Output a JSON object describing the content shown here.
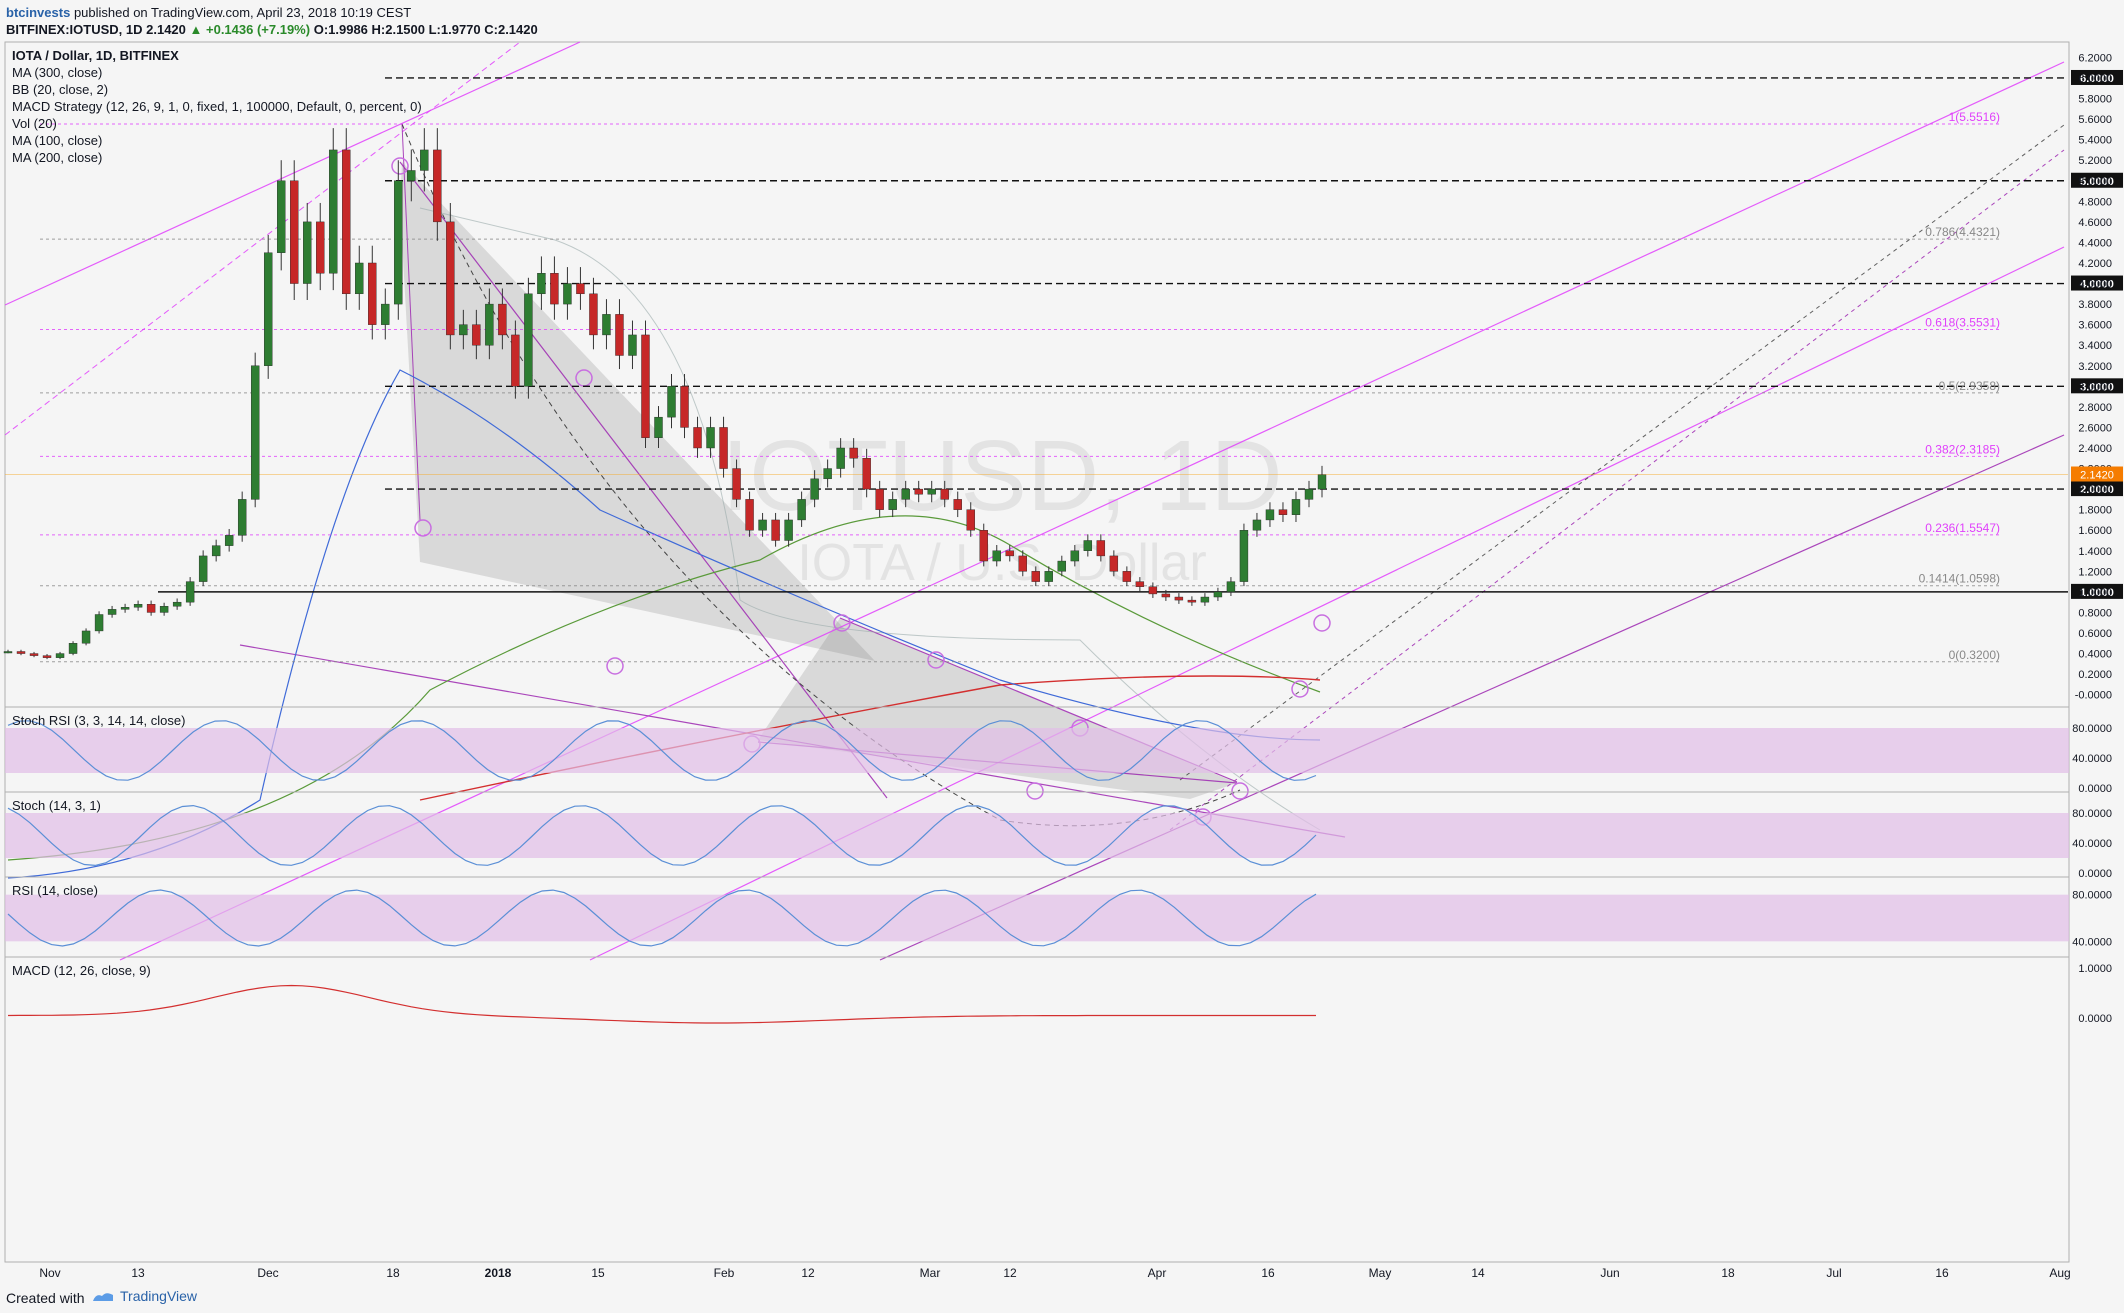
{
  "header": {
    "author": "btcinvests",
    "published": "published on TradingView.com, April 23, 2018 10:19 CEST",
    "symbol_line": "BITFINEX:IOTUSD, 1D 2.1420",
    "change": "▲ +0.1436 (+7.19%)",
    "ohlc": "O:1.9986 H:2.1500 L:1.9770 C:2.1420"
  },
  "legend": [
    "IOTA / Dollar, 1D, BITFINEX",
    "MA (300, close)",
    "BB (20, close, 2)",
    "MACD Strategy (12, 26, 9, 1, 0, fixed, 1, 100000, Default, 0, percent, 0)",
    "Vol (20)",
    "MA (100, close)",
    "MA (200, close)"
  ],
  "watermark": {
    "symbol": "IOTUSD, 1D",
    "name": "IOTA / U.S. Dollar"
  },
  "footer": {
    "created": "Created with",
    "brand": "TradingView"
  },
  "colors": {
    "bull": "#2e7d32",
    "bear": "#c62828",
    "pink": "#e040fb",
    "purple": "#9c27b0",
    "blue": "#3f6ad8",
    "price_tag": "#f57c00",
    "panel_fill": "#e1bee7"
  },
  "chart_data": [
    {
      "type": "candlestick",
      "panel": "price",
      "x_ticks": [
        "Nov",
        "13",
        "Dec",
        "18",
        "2018",
        "15",
        "Feb",
        "12",
        "Mar",
        "12",
        "Apr",
        "16",
        "May",
        "14",
        "Jun",
        "18",
        "Jul",
        "16",
        "Aug"
      ],
      "y_ticks": [
        "6.2000",
        "6.0000",
        "5.8000",
        "5.6000",
        "5.4000",
        "5.2000",
        "5.0000",
        "4.8000",
        "4.6000",
        "4.4000",
        "4.2000",
        "4.0000",
        "3.8000",
        "3.6000",
        "3.4000",
        "3.2000",
        "3.0000",
        "2.8000",
        "2.6000",
        "2.4000",
        "2.2000",
        "2.0000",
        "1.8000",
        "1.6000",
        "1.4000",
        "1.2000",
        "1.0000",
        "0.8000",
        "0.6000",
        "0.4000",
        "0.2000",
        "-0.0000"
      ],
      "ylim": [
        -0.12,
        6.35
      ],
      "last_price": "2.1420",
      "horizontal_levels": [
        "6.0000",
        "5.0000",
        "4.0000",
        "3.0000",
        "2.0000",
        "1.0000"
      ],
      "fib_levels": [
        {
          "label": "1(5.5516)",
          "value": 5.5516
        },
        {
          "label": "0.786(4.4321)",
          "value": 4.4321
        },
        {
          "label": "0.618(3.5531)",
          "value": 3.5531
        },
        {
          "label": "0.5(2.9358)",
          "value": 2.9358
        },
        {
          "label": "0.382(2.3185)",
          "value": 2.3185
        },
        {
          "label": "0.236(1.5547)",
          "value": 1.5547
        },
        {
          "label": "0.1414(1.0598)",
          "value": 1.0598
        },
        {
          "label": "0(0.3200)",
          "value": 0.32
        }
      ],
      "close_series": [
        0.42,
        0.4,
        0.38,
        0.36,
        0.4,
        0.5,
        0.62,
        0.78,
        0.83,
        0.85,
        0.88,
        0.8,
        0.86,
        0.9,
        1.1,
        1.35,
        1.45,
        1.55,
        1.9,
        3.2,
        4.3,
        5.0,
        4.0,
        4.6,
        4.1,
        5.3,
        3.9,
        4.2,
        3.6,
        3.8,
        5.0,
        5.1,
        5.3,
        4.6,
        3.5,
        3.6,
        3.4,
        3.8,
        3.5,
        3.0,
        3.9,
        4.1,
        3.8,
        4.0,
        3.9,
        3.5,
        3.7,
        3.3,
        3.5,
        2.5,
        2.7,
        3.0,
        2.6,
        2.4,
        2.6,
        2.2,
        1.9,
        1.6,
        1.7,
        1.5,
        1.7,
        1.9,
        2.1,
        2.2,
        2.4,
        2.3,
        2.0,
        1.8,
        1.9,
        2.0,
        1.95,
        2.0,
        1.9,
        1.8,
        1.6,
        1.3,
        1.4,
        1.35,
        1.2,
        1.1,
        1.2,
        1.3,
        1.4,
        1.5,
        1.35,
        1.2,
        1.1,
        1.05,
        0.98,
        0.95,
        0.92,
        0.9,
        0.95,
        1.0,
        1.1,
        1.6,
        1.7,
        1.8,
        1.75,
        1.9,
        2.0,
        2.14
      ]
    },
    {
      "type": "line",
      "panel": "Stoch RSI (3, 3, 14, 14, close)",
      "y_ticks": [
        "80.0000",
        "40.0000",
        "0.0000"
      ],
      "ylim": [
        0,
        100
      ]
    },
    {
      "type": "line",
      "panel": "Stoch (14, 3, 1)",
      "y_ticks": [
        "80.0000",
        "40.0000",
        "0.0000"
      ],
      "ylim": [
        0,
        100
      ]
    },
    {
      "type": "line",
      "panel": "RSI (14, close)",
      "y_ticks": [
        "80.0000",
        "40.0000"
      ],
      "ylim": [
        30,
        90
      ]
    },
    {
      "type": "histogram",
      "panel": "MACD (12, 26, close, 9)",
      "y_ticks": [
        "1.0000",
        "0.0000"
      ],
      "ylim": [
        -0.3,
        1.1
      ]
    }
  ]
}
